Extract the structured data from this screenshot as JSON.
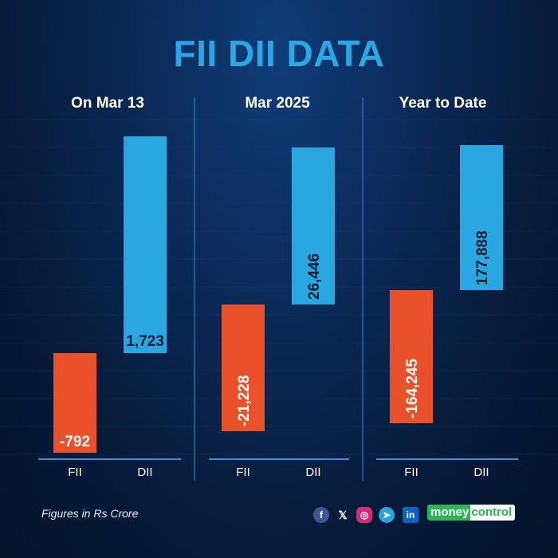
{
  "title": "FII DII DATA",
  "footnote": "Figures in Rs Crore",
  "brand": {
    "part1": "money",
    "part2": "control"
  },
  "social_icons": [
    "facebook-icon",
    "x-icon",
    "instagram-icon",
    "telegram-icon",
    "linkedin-icon"
  ],
  "colors": {
    "fii": "#e8512a",
    "dii": "#29a7e1",
    "title": "#2aa8e6",
    "brand": "#2fb45a"
  },
  "chart_data": [
    {
      "type": "bar",
      "title": "On Mar 13",
      "categories": [
        "FII",
        "DII"
      ],
      "values": [
        -792,
        1723
      ],
      "labels": [
        "-792",
        "1,723"
      ]
    },
    {
      "type": "bar",
      "title": "Mar 2025",
      "categories": [
        "FII",
        "DII"
      ],
      "values": [
        -21228,
        26446
      ],
      "labels": [
        "-21,228",
        "26,446"
      ]
    },
    {
      "type": "bar",
      "title": "Year to Date",
      "categories": [
        "FII",
        "DII"
      ],
      "values": [
        -164245,
        177888
      ],
      "labels": [
        "-164,245",
        "177,888"
      ]
    }
  ]
}
